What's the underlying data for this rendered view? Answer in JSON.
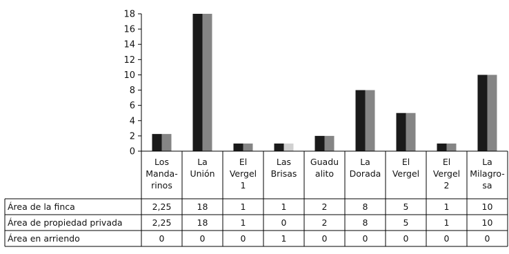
{
  "chart_data": {
    "type": "bar",
    "categories": [
      [
        "Los",
        "Manda-",
        "rinos"
      ],
      [
        "La",
        "Unión"
      ],
      [
        "El",
        "Vergel",
        "1"
      ],
      [
        "Las",
        "Brisas"
      ],
      [
        "Guadu",
        "alito"
      ],
      [
        "La",
        "Dorada"
      ],
      [
        "El",
        "Vergel"
      ],
      [
        "El",
        "Vergel",
        "2"
      ],
      [
        "La",
        "Milagro-",
        "sa"
      ]
    ],
    "series": [
      {
        "name": "Área de la finca",
        "color": "#1a1a1a",
        "values": [
          2.25,
          18,
          1,
          1,
          2,
          8,
          5,
          1,
          10
        ],
        "labels": [
          "2,25",
          "18",
          "1",
          "1",
          "2",
          "8",
          "5",
          "1",
          "10"
        ]
      },
      {
        "name": "Área de propiedad privada",
        "color": "#858585",
        "values": [
          2.25,
          18,
          1,
          0,
          2,
          8,
          5,
          1,
          10
        ],
        "labels": [
          "2,25",
          "18",
          "1",
          "0",
          "2",
          "8",
          "5",
          "1",
          "10"
        ]
      },
      {
        "name": "Área en arriendo",
        "color": "#d0d0d0",
        "values": [
          0,
          0,
          0,
          1,
          0,
          0,
          0,
          0,
          0
        ],
        "labels": [
          "0",
          "0",
          "0",
          "1",
          "0",
          "0",
          "0",
          "0",
          "0"
        ]
      }
    ],
    "yticks": [
      "0",
      "2",
      "4",
      "6",
      "8",
      "10",
      "12",
      "14",
      "16",
      "18"
    ],
    "ylim": [
      0,
      18
    ],
    "grid": false,
    "legend": "data table below chart"
  }
}
